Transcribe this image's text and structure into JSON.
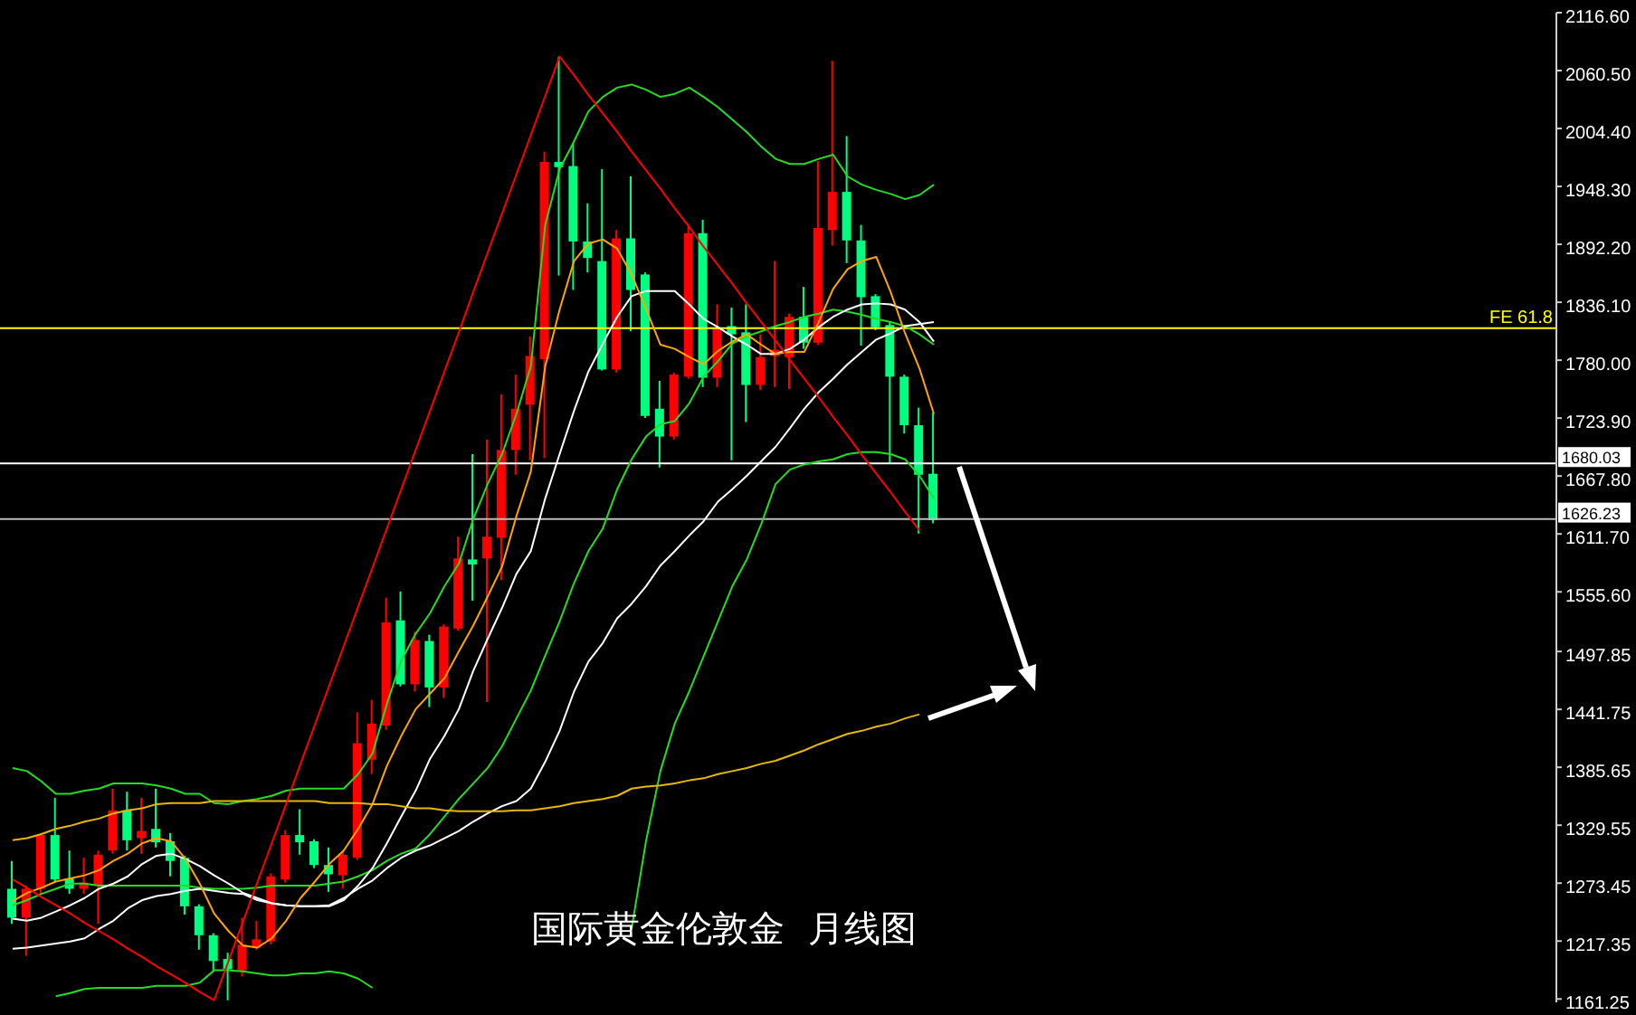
{
  "chart_data": {
    "type": "candlestick",
    "title": "国际黄金伦敦金  月线图",
    "categories": [
      null,
      null,
      null,
      null,
      null,
      null,
      null,
      null,
      null,
      null,
      null,
      null,
      null,
      null,
      null,
      null,
      null,
      null,
      null,
      null,
      null,
      null,
      null,
      null,
      null,
      null,
      null,
      null,
      null,
      null,
      null,
      null,
      null,
      null,
      null,
      null,
      null,
      null,
      null,
      null,
      null,
      null,
      null,
      null,
      null,
      null,
      null,
      null,
      null,
      null,
      null,
      null,
      null,
      null,
      null,
      null,
      null,
      null,
      null,
      null,
      null,
      null,
      null,
      null,
      null
    ],
    "ohlc": [
      [
        1268,
        1295,
        1234,
        1240
      ],
      [
        1240,
        1271,
        1203,
        1268
      ],
      [
        1268,
        1322,
        1263,
        1320
      ],
      [
        1320,
        1356,
        1274,
        1277
      ],
      [
        1278,
        1305,
        1263,
        1268
      ],
      [
        1268,
        1298,
        1263,
        1274
      ],
      [
        1271,
        1305,
        1234,
        1301
      ],
      [
        1305,
        1365,
        1302,
        1344
      ],
      [
        1344,
        1362,
        1305,
        1315
      ],
      [
        1317,
        1356,
        1302,
        1324
      ],
      [
        1326,
        1365,
        1308,
        1313
      ],
      [
        1314,
        1322,
        1280,
        1295
      ],
      [
        1298,
        1300,
        1243,
        1251
      ],
      [
        1251,
        1253,
        1209,
        1223
      ],
      [
        1223,
        1225,
        1189,
        1198
      ],
      [
        1200,
        1206,
        1160,
        1190
      ],
      [
        1189,
        1240,
        1183,
        1214
      ],
      [
        1211,
        1237,
        1209,
        1219
      ],
      [
        1217,
        1283,
        1214,
        1280
      ],
      [
        1277,
        1325,
        1274,
        1320
      ],
      [
        1320,
        1345,
        1301,
        1313
      ],
      [
        1314,
        1316,
        1288,
        1291
      ],
      [
        1291,
        1308,
        1265,
        1282
      ],
      [
        1281,
        1305,
        1268,
        1301
      ],
      [
        1298,
        1439,
        1296,
        1409
      ],
      [
        1393,
        1451,
        1379,
        1428
      ],
      [
        1426,
        1550,
        1422,
        1526
      ],
      [
        1528,
        1556,
        1464,
        1466
      ],
      [
        1466,
        1517,
        1459,
        1509
      ],
      [
        1508,
        1514,
        1444,
        1463
      ],
      [
        1463,
        1524,
        1453,
        1522
      ],
      [
        1520,
        1609,
        1518,
        1588
      ],
      [
        1587,
        1689,
        1547,
        1582
      ],
      [
        1588,
        1703,
        1449,
        1609
      ],
      [
        1608,
        1747,
        1567,
        1693
      ],
      [
        1693,
        1766,
        1669,
        1733
      ],
      [
        1737,
        1803,
        1683,
        1784
      ],
      [
        1781,
        1982,
        1685,
        1972
      ],
      [
        1972,
        2074,
        1862,
        1967
      ],
      [
        1968,
        1990,
        1848,
        1895
      ],
      [
        1895,
        1932,
        1865,
        1879
      ],
      [
        1876,
        1965,
        1770,
        1771
      ],
      [
        1771,
        1906,
        1768,
        1898
      ],
      [
        1898,
        1958,
        1808,
        1848
      ],
      [
        1863,
        1865,
        1724,
        1726
      ],
      [
        1733,
        1760,
        1676,
        1706
      ],
      [
        1706,
        1768,
        1703,
        1766
      ],
      [
        1764,
        1912,
        1762,
        1903
      ],
      [
        1903,
        1916,
        1754,
        1763
      ],
      [
        1763,
        1834,
        1754,
        1811
      ],
      [
        1813,
        1831,
        1683,
        1805
      ],
      [
        1807,
        1834,
        1720,
        1756
      ],
      [
        1756,
        1805,
        1751,
        1783
      ],
      [
        1784,
        1876,
        1754,
        1790
      ],
      [
        1783,
        1825,
        1752,
        1822
      ],
      [
        1822,
        1851,
        1791,
        1797
      ],
      [
        1797,
        1973,
        1795,
        1908
      ],
      [
        1906,
        2070,
        1891,
        1943
      ],
      [
        1943,
        1997,
        1874,
        1896
      ],
      [
        1896,
        1911,
        1794,
        1841
      ],
      [
        1842,
        1844,
        1809,
        1812
      ],
      [
        1814,
        1817,
        1680,
        1764
      ],
      [
        1764,
        1766,
        1709,
        1717
      ],
      [
        1717,
        1734,
        1612,
        1669
      ],
      [
        1670,
        1729,
        1622,
        1625
      ]
    ],
    "colors": [
      "#00ff80",
      "#ff0000",
      "#ff0000",
      "#00ff80",
      "#00ff80",
      "#ff0000",
      "#ff0000",
      "#ff0000",
      "#00ff80",
      "#ff0000",
      "#00ff80",
      "#00ff80",
      "#00ff80",
      "#00ff80",
      "#00ff80",
      "#00ff80",
      "#ff0000",
      "#ff0000",
      "#ff0000",
      "#ff0000",
      "#00ff80",
      "#00ff80",
      "#00ff80",
      "#ff0000",
      "#ff0000",
      "#ff0000",
      "#ff0000",
      "#00ff80",
      "#ff0000",
      "#00ff80",
      "#ff0000",
      "#ff0000",
      "#00ff80",
      "#ff0000",
      "#ff0000",
      "#ff0000",
      "#ff0000",
      "#ff0000",
      "#00ff80",
      "#00ff80",
      "#00ff80",
      "#00ff80",
      "#ff0000",
      "#00ff80",
      "#00ff80",
      "#00ff80",
      "#ff0000",
      "#ff0000",
      "#00ff80",
      "#ff0000",
      "#00ff80",
      "#00ff80",
      "#ff0000",
      "#ff0000",
      "#ff0000",
      "#00ff80",
      "#ff0000",
      "#ff0000",
      "#00ff80",
      "#00ff80",
      "#00ff80",
      "#00ff80",
      "#00ff80",
      "#00ff80",
      "#00ff80"
    ],
    "series": [
      {
        "type": "line",
        "color": "#22dd22",
        "values": [
          1385,
          1382,
          1372,
          1360,
          1360,
          1363,
          1365,
          1370,
          1370,
          1370,
          1368,
          1365,
          1360,
          1360,
          1351,
          1350,
          1353,
          1355,
          1358,
          1363,
          1365,
          1365,
          1365,
          1365,
          1379,
          1399,
          1447,
          1489,
          1515,
          1535,
          1561,
          1583,
          1626,
          1660,
          1689,
          1728,
          1774,
          1911,
          1965,
          1992,
          2021,
          2035,
          2044,
          2047,
          2042,
          2035,
          2038,
          2044,
          2035,
          2025,
          2013,
          2001,
          1987,
          1975,
          1970,
          1970,
          1975,
          1979,
          1958,
          1950,
          1945,
          1941,
          1936,
          1940,
          1950
        ]
      },
      {
        "type": "line",
        "color": "#22dd22",
        "values": [
          1252,
          1257,
          1263,
          1268,
          1273,
          1273,
          1271,
          1271,
          1271,
          1271,
          1271,
          1271,
          1271,
          1269,
          1268,
          1268,
          1268,
          1269,
          1271,
          1271,
          1271,
          1271,
          1273,
          1275,
          1280,
          1286,
          1295,
          1302,
          1307,
          1321,
          1338,
          1355,
          1370,
          1385,
          1406,
          1433,
          1460,
          1494,
          1527,
          1564,
          1595,
          1617,
          1655,
          1684,
          1706,
          1718,
          1721,
          1738,
          1764,
          1779,
          1796,
          1803,
          1808,
          1813,
          1817,
          1822,
          1825,
          1829,
          1827,
          1824,
          1820,
          1817,
          1813,
          1805,
          1795
        ]
      },
      {
        "type": "line",
        "color": "#22dd22",
        "values": [
          null,
          null,
          null,
          1164,
          1167,
          1171,
          1172,
          1172,
          1172,
          1172,
          1174,
          1174,
          1174,
          1177,
          1189,
          1189,
          1188,
          1186,
          1184,
          1184,
          1186,
          1186,
          1188,
          1186,
          1181,
          1172,
          null,
          null,
          null,
          null,
          null,
          null,
          null,
          null,
          null,
          null,
          null,
          null,
          null,
          null,
          null,
          null,
          null,
          1229,
          1314,
          1382,
          1428,
          1459,
          1493,
          1527,
          1561,
          1587,
          1621,
          1660,
          1674,
          1679,
          1682,
          1684,
          1689,
          1691,
          1691,
          1689,
          1684,
          1668,
          1646
        ]
      },
      {
        "type": "line",
        "color": "#ffffff",
        "values": [
          1239,
          1237,
          1240,
          1246,
          1252,
          1259,
          1268,
          1273,
          1280,
          1292,
          1300,
          1302,
          1297,
          1290,
          1281,
          1273,
          1264,
          1259,
          1254,
          1252,
          1251,
          1251,
          1251,
          1257,
          1271,
          1288,
          1312,
          1338,
          1363,
          1394,
          1416,
          1442,
          1479,
          1510,
          1540,
          1573,
          1595,
          1646,
          1689,
          1731,
          1769,
          1796,
          1822,
          1842,
          1847,
          1847,
          1847,
          1834,
          1820,
          1812,
          1803,
          1795,
          1786,
          1786,
          1791,
          1800,
          1812,
          1822,
          1829,
          1834,
          1835,
          1834,
          1829,
          1817,
          1798
        ]
      },
      {
        "type": "line",
        "color": "#ffffff",
        "values": [
          1210,
          1211,
          1213,
          1215,
          1217,
          1220,
          1229,
          1237,
          1249,
          1257,
          1261,
          1263,
          1266,
          1268,
          1266,
          1264,
          1263,
          1257,
          1254,
          1252,
          1251,
          1251,
          1252,
          1259,
          1268,
          1276,
          1288,
          1298,
          1305,
          1310,
          1317,
          1324,
          1333,
          1341,
          1348,
          1353,
          1365,
          1391,
          1421,
          1459,
          1488,
          1506,
          1530,
          1544,
          1561,
          1581,
          1595,
          1610,
          1624,
          1643,
          1655,
          1668,
          1682,
          1696,
          1714,
          1733,
          1749,
          1762,
          1776,
          1788,
          1800,
          1806,
          1813,
          1815,
          1817
        ]
      },
      {
        "type": "line",
        "color": "#ffa500",
        "values": [
          1256,
          1264,
          1269,
          1275,
          1278,
          1281,
          1286,
          1295,
          1302,
          1312,
          1317,
          1314,
          1297,
          1273,
          1244,
          1227,
          1213,
          1211,
          1220,
          1237,
          1259,
          1275,
          1292,
          1305,
          1326,
          1350,
          1387,
          1416,
          1442,
          1457,
          1472,
          1498,
          1523,
          1551,
          1580,
          1629,
          1672,
          1774,
          1829,
          1876,
          1893,
          1897,
          1888,
          1863,
          1830,
          1795,
          1791,
          1783,
          1776,
          1789,
          1798,
          1805,
          1795,
          1786,
          1788,
          1788,
          1817,
          1849,
          1868,
          1876,
          1880,
          1846,
          1806,
          1772,
          1728
        ]
      },
      {
        "type": "line",
        "color": "#e6b800",
        "values": [
          1315,
          1317,
          1321,
          1326,
          1329,
          1333,
          1336,
          1341,
          1344,
          1346,
          1350,
          1351,
          1351,
          1351,
          1353,
          1353,
          1353,
          1353,
          1353,
          1353,
          1353,
          1353,
          1351,
          1351,
          1351,
          1350,
          1350,
          1348,
          1346,
          1346,
          1344,
          1343,
          1343,
          1343,
          1343,
          1344,
          1344,
          1346,
          1348,
          1351,
          1353,
          1355,
          1358,
          1365,
          1367,
          1368,
          1370,
          1373,
          1375,
          1379,
          1382,
          1385,
          1389,
          1392,
          1397,
          1402,
          1408,
          1413,
          1418,
          1421,
          1425,
          1428,
          1433,
          1437,
          null
        ]
      },
      {
        "type": "line",
        "color": "#ff0000",
        "values": [
          1277,
          1269,
          1260,
          1252,
          1244,
          1235,
          1227,
          1219,
          1210,
          1202,
          1193,
          1185,
          1177,
          1168,
          1160,
          1198,
          1236,
          1274,
          1312,
          1350,
          1389,
          1427,
          1465,
          1503,
          1541,
          1579,
          1617,
          1655,
          1693,
          1731,
          1769,
          1807,
          1846,
          1884,
          1922,
          1960,
          1998,
          2036,
          2074,
          2056,
          2037,
          2019,
          2001,
          1982,
          1964,
          1946,
          1927,
          1909,
          1890,
          1872,
          1854,
          1835,
          1817,
          1799,
          1780,
          1762,
          1744,
          1725,
          1707,
          1688,
          1670,
          1652,
          1633,
          1615,
          null
        ]
      }
    ],
    "ylim": [
      1158,
      2116.6
    ],
    "yticks": [
      {
        "value": 2116.6,
        "label": "2116.60"
      },
      {
        "value": 2060.5,
        "label": "2060.50"
      },
      {
        "value": 2004.4,
        "label": "2004.40"
      },
      {
        "value": 1948.3,
        "label": "1948.30"
      },
      {
        "value": 1892.2,
        "label": "1892.20"
      },
      {
        "value": 1836.1,
        "label": "1836.10"
      },
      {
        "value": 1780,
        "label": "1780.00"
      },
      {
        "value": 1723.9,
        "label": "1723.90"
      },
      {
        "value": 1667.8,
        "label": "1667.80"
      },
      {
        "value": 1611.7,
        "label": "1611.70"
      },
      {
        "value": 1555.6,
        "label": "1555.60"
      },
      1497.85,
      1441.75,
      1385.65,
      1329.55,
      1273.45,
      1217.35,
      1161.25
    ],
    "ref_lines": [
      {
        "axis": "y",
        "value": 1811,
        "label": "FE 61.8",
        "color": "#ffff00"
      },
      {
        "axis": "y",
        "value": 1680.03,
        "label": "1680.03",
        "color": "#ffffff"
      },
      {
        "axis": "y",
        "value": 1626.23,
        "label": "1626.23",
        "color": "#bbbbbb"
      }
    ],
    "tick_labels": "y"
  }
}
